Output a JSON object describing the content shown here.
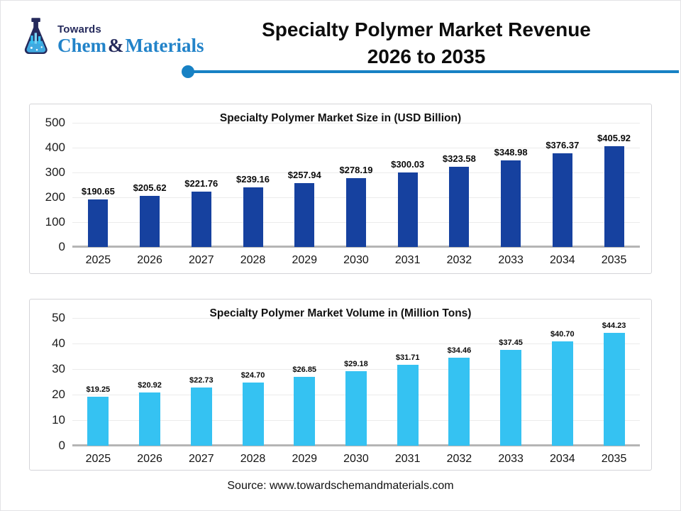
{
  "colors": {
    "accent_line": "#1781c4",
    "navy_bar": "#16419f",
    "cyan_bar": "#35c2f2",
    "logo_navy": "#252a5c",
    "logo_blue": "#2283c9"
  },
  "logo": {
    "towards": "Towards",
    "chem": "Chem",
    "amp": "&",
    "materials": "Materials"
  },
  "header": {
    "title_line1": "Specialty Polymer Market Revenue",
    "title_line2": "2026 to 2035"
  },
  "footer": {
    "source": "Source: www.towardschemandmaterials.com"
  },
  "chart_data": [
    {
      "type": "bar",
      "title": "Specialty Polymer Market Size in (USD Billion)",
      "categories": [
        "2025",
        "2026",
        "2027",
        "2028",
        "2029",
        "2030",
        "2031",
        "2032",
        "2033",
        "2034",
        "2035"
      ],
      "values": [
        190.65,
        205.62,
        221.76,
        239.16,
        257.94,
        278.19,
        300.03,
        323.58,
        348.98,
        376.37,
        405.92
      ],
      "labels": [
        "$190.65",
        "$205.62",
        "$221.76",
        "$239.16",
        "$257.94",
        "$278.19",
        "$300.03",
        "$323.58",
        "$348.98",
        "$376.37",
        "$405.92"
      ],
      "xlabel": "",
      "ylabel": "",
      "ylim": [
        0,
        500
      ],
      "yticks": [
        0,
        100,
        200,
        300,
        400,
        500
      ],
      "grid": true,
      "legend": "none",
      "bar_color": "#16419f"
    },
    {
      "type": "bar",
      "title": "Specialty Polymer Market Volume in (Million Tons)",
      "categories": [
        "2025",
        "2026",
        "2027",
        "2028",
        "2029",
        "2030",
        "2031",
        "2032",
        "2033",
        "2034",
        "2035"
      ],
      "values": [
        19.25,
        20.92,
        22.73,
        24.7,
        26.85,
        29.18,
        31.71,
        34.46,
        37.45,
        40.7,
        44.23
      ],
      "labels": [
        "$19.25",
        "$20.92",
        "$22.73",
        "$24.70",
        "$26.85",
        "$29.18",
        "$31.71",
        "$34.46",
        "$37.45",
        "$40.70",
        "$44.23"
      ],
      "xlabel": "",
      "ylabel": "",
      "ylim": [
        0,
        50
      ],
      "yticks": [
        0,
        10,
        20,
        30,
        40,
        50
      ],
      "grid": true,
      "legend": "none",
      "bar_color": "#35c2f2"
    }
  ]
}
